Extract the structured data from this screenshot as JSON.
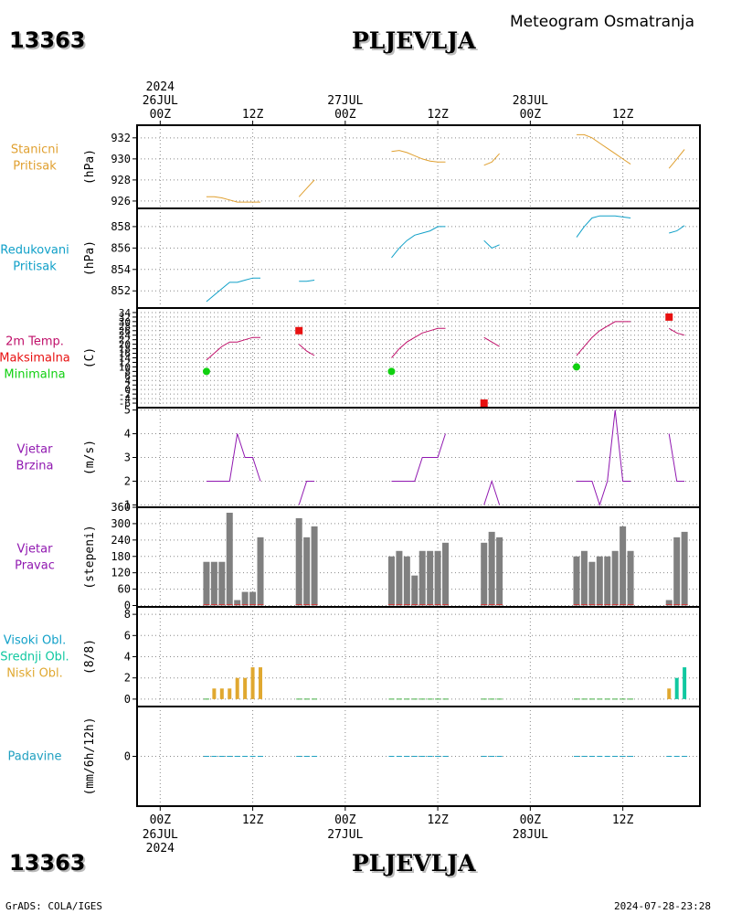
{
  "header": {
    "station_id": "13363",
    "station_name": "PLJEVLJA",
    "product": "Meteogram Osmatranja"
  },
  "footer": {
    "credit": "GrADS: COLA/IGES",
    "timestamp": "2024-07-28-23:28"
  },
  "time_axis": {
    "hour_labels": [
      "00Z",
      "12Z",
      "00Z",
      "12Z",
      "00Z",
      "12Z"
    ],
    "hour_positions": [
      0,
      12,
      24,
      36,
      48,
      60
    ],
    "day_labels": [
      {
        "day": "26JUL",
        "year": "2024",
        "h": 0
      },
      {
        "day": "27JUL",
        "year": "",
        "h": 24
      },
      {
        "day": "28JUL",
        "year": "",
        "h": 48
      }
    ],
    "range_hours": [
      -3,
      70
    ]
  },
  "colors": {
    "pressure_station": "#e0a030",
    "pressure_reduced": "#10a0c8",
    "temp_2m": "#c0106a",
    "temp_max": "#e81010",
    "temp_min": "#10d010",
    "wind": "#9018b0",
    "wind_dir_bar": "#808080",
    "cloud_low": "#e0a830",
    "cloud_mid": "#10c8a0",
    "precip": "#20a0c0",
    "grid": "#888888"
  },
  "chart_data": [
    {
      "type": "line",
      "title_lines": [
        "Stanicni",
        "Pritisak"
      ],
      "ylabel": "(hPa)",
      "ylim": [
        925.3,
        933.2
      ],
      "yticks": [
        926,
        928,
        930,
        932
      ],
      "series": [
        {
          "x": [
            6,
            7,
            8,
            9,
            10,
            11,
            12,
            13
          ],
          "y": [
            926.4,
            926.4,
            926.3,
            926.1,
            925.9,
            925.9,
            925.9,
            925.9
          ]
        },
        {
          "x": [
            18,
            19,
            20
          ],
          "y": [
            926.4,
            927.2,
            928.0
          ]
        },
        {
          "x": [
            30,
            31,
            32,
            33,
            34,
            35,
            36,
            37
          ],
          "y": [
            930.7,
            930.8,
            930.6,
            930.3,
            930.0,
            929.8,
            929.7,
            929.7
          ]
        },
        {
          "x": [
            42,
            43,
            44
          ],
          "y": [
            929.4,
            929.7,
            930.5
          ]
        },
        {
          "x": [
            54,
            55,
            56,
            57,
            58,
            59,
            60,
            61
          ],
          "y": [
            932.3,
            932.3,
            932.0,
            931.5,
            931.0,
            930.5,
            930.0,
            929.5
          ]
        },
        {
          "x": [
            66,
            67,
            68
          ],
          "y": [
            929.1,
            930.0,
            930.9
          ]
        }
      ]
    },
    {
      "type": "line",
      "title_lines": [
        "Redukovani",
        "Pritisak"
      ],
      "ylabel": "(hPa)",
      "ylim": [
        850.4,
        859.7
      ],
      "yticks": [
        852,
        854,
        856,
        858
      ],
      "series": [
        {
          "x": [
            6,
            7,
            8,
            9,
            10,
            11,
            12,
            13
          ],
          "y": [
            851.0,
            851.6,
            852.2,
            852.8,
            852.8,
            853.0,
            853.2,
            853.2
          ]
        },
        {
          "x": [
            18,
            19,
            20
          ],
          "y": [
            852.9,
            852.9,
            853.0
          ]
        },
        {
          "x": [
            30,
            31,
            32,
            33,
            34,
            35,
            36,
            37
          ],
          "y": [
            855.1,
            856.0,
            856.7,
            857.2,
            857.4,
            857.6,
            858.0,
            858.0
          ]
        },
        {
          "x": [
            42,
            43,
            44
          ],
          "y": [
            856.7,
            856.0,
            856.3
          ]
        },
        {
          "x": [
            54,
            55,
            56,
            57,
            58,
            59,
            60,
            61
          ],
          "y": [
            857.0,
            858.0,
            858.8,
            859.0,
            859.0,
            859.0,
            858.9,
            858.8
          ]
        },
        {
          "x": [
            66,
            67,
            68
          ],
          "y": [
            857.4,
            857.6,
            858.1
          ]
        }
      ]
    },
    {
      "type": "line",
      "title_lines": [
        "2m Temp.",
        "Maksimalna",
        "Minimalna"
      ],
      "ylabel": "(C)",
      "ylim": [
        -8,
        36
      ],
      "yticks": [
        -6,
        -4,
        -2,
        0,
        2,
        4,
        6,
        8,
        10,
        12,
        14,
        16,
        18,
        20,
        22,
        24,
        26,
        28,
        30,
        32,
        34
      ],
      "series": [
        {
          "name": "2m Temp.",
          "x": [
            6,
            7,
            8,
            9,
            10,
            11,
            12,
            13
          ],
          "y": [
            13,
            16,
            19,
            21,
            21,
            22,
            23,
            23
          ]
        },
        {
          "name": "2m Temp.",
          "x": [
            18,
            19,
            20
          ],
          "y": [
            20,
            17,
            15
          ]
        },
        {
          "name": "2m Temp.",
          "x": [
            30,
            31,
            32,
            33,
            34,
            35,
            36,
            37
          ],
          "y": [
            14,
            18,
            21,
            23,
            25,
            26,
            27,
            27
          ]
        },
        {
          "name": "2m Temp.",
          "x": [
            42,
            43,
            44
          ],
          "y": [
            23,
            21,
            19
          ]
        },
        {
          "name": "2m Temp.",
          "x": [
            54,
            55,
            56,
            57,
            58,
            59,
            60,
            61
          ],
          "y": [
            15,
            19,
            23,
            26,
            28,
            30,
            30,
            30
          ]
        },
        {
          "name": "2m Temp.",
          "x": [
            66,
            67,
            68
          ],
          "y": [
            27,
            25,
            24
          ]
        }
      ],
      "maksimalna": [
        {
          "x": 18,
          "y": 26
        },
        {
          "x": 42,
          "y": -6
        },
        {
          "x": 66,
          "y": 32
        }
      ],
      "minimalna": [
        {
          "x": 6,
          "y": 8
        },
        {
          "x": 30,
          "y": 8
        },
        {
          "x": 54,
          "y": 10
        }
      ]
    },
    {
      "type": "line",
      "title_lines": [
        "Vjetar",
        "Brzina"
      ],
      "ylabel": "(m/s)",
      "ylim": [
        0.9,
        5.1
      ],
      "yticks": [
        1,
        2,
        3,
        4,
        5
      ],
      "series": [
        {
          "x": [
            6,
            7,
            8,
            9,
            10,
            11,
            12,
            13
          ],
          "y": [
            2,
            2,
            2,
            2,
            4,
            3,
            3,
            2
          ]
        },
        {
          "x": [
            18,
            19,
            20
          ],
          "y": [
            1,
            2,
            2
          ]
        },
        {
          "x": [
            30,
            31,
            32,
            33,
            34,
            35,
            36,
            37
          ],
          "y": [
            2,
            2,
            2,
            2,
            3,
            3,
            3,
            4
          ]
        },
        {
          "x": [
            42,
            43,
            44
          ],
          "y": [
            1,
            2,
            1
          ]
        },
        {
          "x": [
            54,
            55,
            56,
            57,
            58,
            59,
            60,
            61
          ],
          "y": [
            2,
            2,
            2,
            1,
            2,
            5,
            2,
            2
          ]
        },
        {
          "x": [
            66,
            67,
            68
          ],
          "y": [
            4,
            2,
            2
          ]
        }
      ]
    },
    {
      "type": "bar",
      "title_lines": [
        "Vjetar",
        "Pravac"
      ],
      "ylabel": "(stepeni)",
      "ylim": [
        -5,
        360
      ],
      "yticks": [
        0,
        60,
        120,
        180,
        240,
        300,
        360
      ],
      "x": [
        6,
        7,
        8,
        9,
        10,
        11,
        12,
        13,
        18,
        19,
        20,
        30,
        31,
        32,
        33,
        34,
        35,
        36,
        37,
        42,
        43,
        44,
        54,
        55,
        56,
        57,
        58,
        59,
        60,
        61,
        66,
        67,
        68
      ],
      "values": [
        160,
        160,
        160,
        340,
        20,
        50,
        50,
        250,
        320,
        250,
        290,
        180,
        200,
        180,
        110,
        200,
        200,
        200,
        230,
        230,
        270,
        250,
        180,
        200,
        160,
        180,
        180,
        200,
        290,
        200,
        20,
        250,
        270
      ]
    },
    {
      "type": "bar",
      "title_lines": [
        "Visoki Obl.",
        "Srednji Obl.",
        "Niski Obl."
      ],
      "ylabel": "(8/8)",
      "ylim": [
        -0.7,
        8.7
      ],
      "yticks": [
        0,
        2,
        4,
        6,
        8
      ],
      "x": [
        6,
        7,
        8,
        9,
        10,
        11,
        12,
        13,
        18,
        19,
        20,
        30,
        31,
        32,
        33,
        34,
        35,
        36,
        37,
        42,
        43,
        44,
        54,
        55,
        56,
        57,
        58,
        59,
        60,
        61,
        66,
        67,
        68
      ],
      "niski": [
        0,
        1,
        1,
        1,
        2,
        2,
        3,
        3,
        0,
        0,
        0,
        0,
        0,
        0,
        0,
        0,
        0,
        0,
        0,
        0,
        0,
        0,
        0,
        0,
        0,
        0,
        0,
        0,
        0,
        0,
        1,
        0,
        0
      ],
      "srednji": [
        0,
        0,
        0,
        0,
        0,
        0,
        0,
        0,
        0,
        0,
        0,
        0,
        0,
        0,
        0,
        0,
        0,
        0,
        0,
        0,
        0,
        0,
        0,
        0,
        0,
        0,
        0,
        0,
        0,
        0,
        0,
        2,
        3
      ]
    },
    {
      "type": "bar",
      "title_lines": [
        "Padavine"
      ],
      "ylabel": "(mm/6h/12h)",
      "ylim": [
        -5,
        5
      ],
      "yticks": [
        0
      ],
      "x": [
        6,
        7,
        8,
        9,
        10,
        11,
        12,
        13,
        18,
        19,
        20,
        30,
        31,
        32,
        33,
        34,
        35,
        36,
        37,
        42,
        43,
        44,
        54,
        55,
        56,
        57,
        58,
        59,
        60,
        61,
        66,
        67,
        68
      ],
      "values": [
        0,
        0,
        0,
        0,
        0,
        0,
        0,
        0,
        0,
        0,
        0,
        0,
        0,
        0,
        0,
        0,
        0,
        0,
        0,
        0,
        0,
        0,
        0,
        0,
        0,
        0,
        0,
        0,
        0,
        0,
        0,
        0,
        0
      ]
    }
  ]
}
